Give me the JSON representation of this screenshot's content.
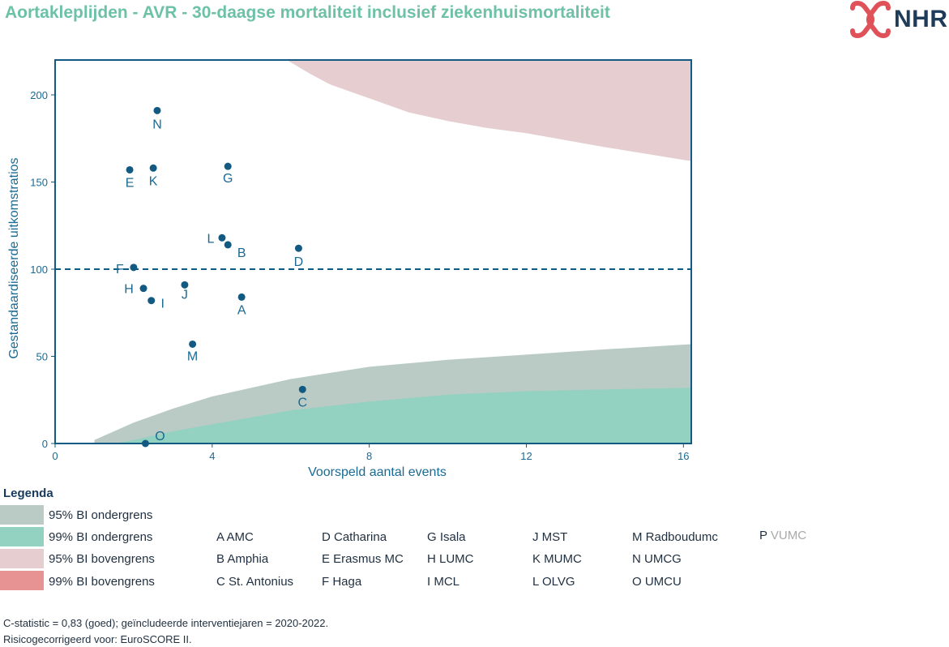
{
  "title": "Aortakleplijden - AVR - 30-daagse mortaliteit inclusief ziekenhuismortaliteit",
  "logo": {
    "text": "NHR",
    "icon": "nhr-cross-icon",
    "color": "#e0525a"
  },
  "chart_data": {
    "type": "scatter",
    "xlabel": "Voorspeld aantal events",
    "ylabel": "Gestandaardiseerde uitkomstratios",
    "xlim": [
      0,
      16.2
    ],
    "ylim": [
      0,
      220
    ],
    "xticks": [
      0,
      4,
      8,
      12,
      16
    ],
    "yticks": [
      0,
      50,
      100,
      150,
      200
    ],
    "reference_line": 100,
    "grid": false,
    "points": [
      {
        "label": "N",
        "x": 2.6,
        "y": 191
      },
      {
        "label": "E",
        "x": 1.9,
        "y": 157
      },
      {
        "label": "K",
        "x": 2.5,
        "y": 158
      },
      {
        "label": "G",
        "x": 4.4,
        "y": 159
      },
      {
        "label": "L",
        "x": 4.25,
        "y": 118
      },
      {
        "label": "B",
        "x": 4.4,
        "y": 114
      },
      {
        "label": "D",
        "x": 6.2,
        "y": 112
      },
      {
        "label": "F",
        "x": 2.0,
        "y": 101
      },
      {
        "label": "H",
        "x": 2.25,
        "y": 89
      },
      {
        "label": "I",
        "x": 2.45,
        "y": 82
      },
      {
        "label": "J",
        "x": 3.3,
        "y": 91
      },
      {
        "label": "A",
        "x": 4.75,
        "y": 84
      },
      {
        "label": "M",
        "x": 3.5,
        "y": 57
      },
      {
        "label": "C",
        "x": 6.3,
        "y": 31
      },
      {
        "label": "O",
        "x": 2.3,
        "y": 0
      }
    ],
    "bands": {
      "ci95_lower": {
        "x": [
          1.0,
          1.5,
          2,
          3,
          4,
          5,
          6,
          8,
          10,
          12,
          14,
          16.2
        ],
        "y": [
          2,
          7,
          12,
          20,
          27,
          32,
          37,
          44,
          48,
          51,
          54,
          57
        ]
      },
      "ci99_lower": {
        "x": [
          1.5,
          2,
          3,
          4,
          5,
          6,
          8,
          10,
          12,
          14,
          16.2
        ],
        "y": [
          0,
          2,
          7,
          11,
          15,
          19,
          24,
          28,
          30,
          31,
          32
        ]
      },
      "ci95_upper": {
        "x": [
          5.9,
          6.5,
          7,
          8,
          9,
          10,
          11,
          12,
          14,
          16.2
        ],
        "y": [
          220,
          212,
          206,
          198,
          190,
          185,
          181,
          178,
          170,
          162
        ]
      }
    },
    "colors": {
      "ci95_lower": "#b9cbc4",
      "ci99_lower": "#93d1c0",
      "ci95_upper": "#e5cdd0",
      "ci99_upper": "#e79393",
      "point": "#135a82",
      "axis": "#135a82",
      "text": "#1a6a93"
    }
  },
  "legend": {
    "title": "Legenda",
    "items": [
      {
        "label": "95% BI ondergrens",
        "color": "#b9cbc4"
      },
      {
        "label": "99% BI ondergrens",
        "color": "#93d1c0"
      },
      {
        "label": "95% BI bovengrens",
        "color": "#e5cdd0"
      },
      {
        "label": "99% BI bovengrens",
        "color": "#e79393"
      }
    ],
    "hospitals": [
      [
        "A AMC",
        "B Amphia",
        "C St. Antonius"
      ],
      [
        "D Catharina",
        "E Erasmus MC",
        "F Haga"
      ],
      [
        "G Isala",
        "H LUMC",
        "I MCL"
      ],
      [
        "J MST",
        "K MUMC",
        "L OLVG"
      ],
      [
        "M Radboudumc",
        "N UMCG",
        "O UMCU"
      ]
    ],
    "hospital_p": {
      "letter": "P",
      "name": "VUMC"
    }
  },
  "footer": {
    "line1": "C-statistic =  0,83 (goed); geïncludeerde interventiejaren = 2020-2022.",
    "line2": "Risicogecorrigeerd voor:  EuroSCORE II."
  }
}
